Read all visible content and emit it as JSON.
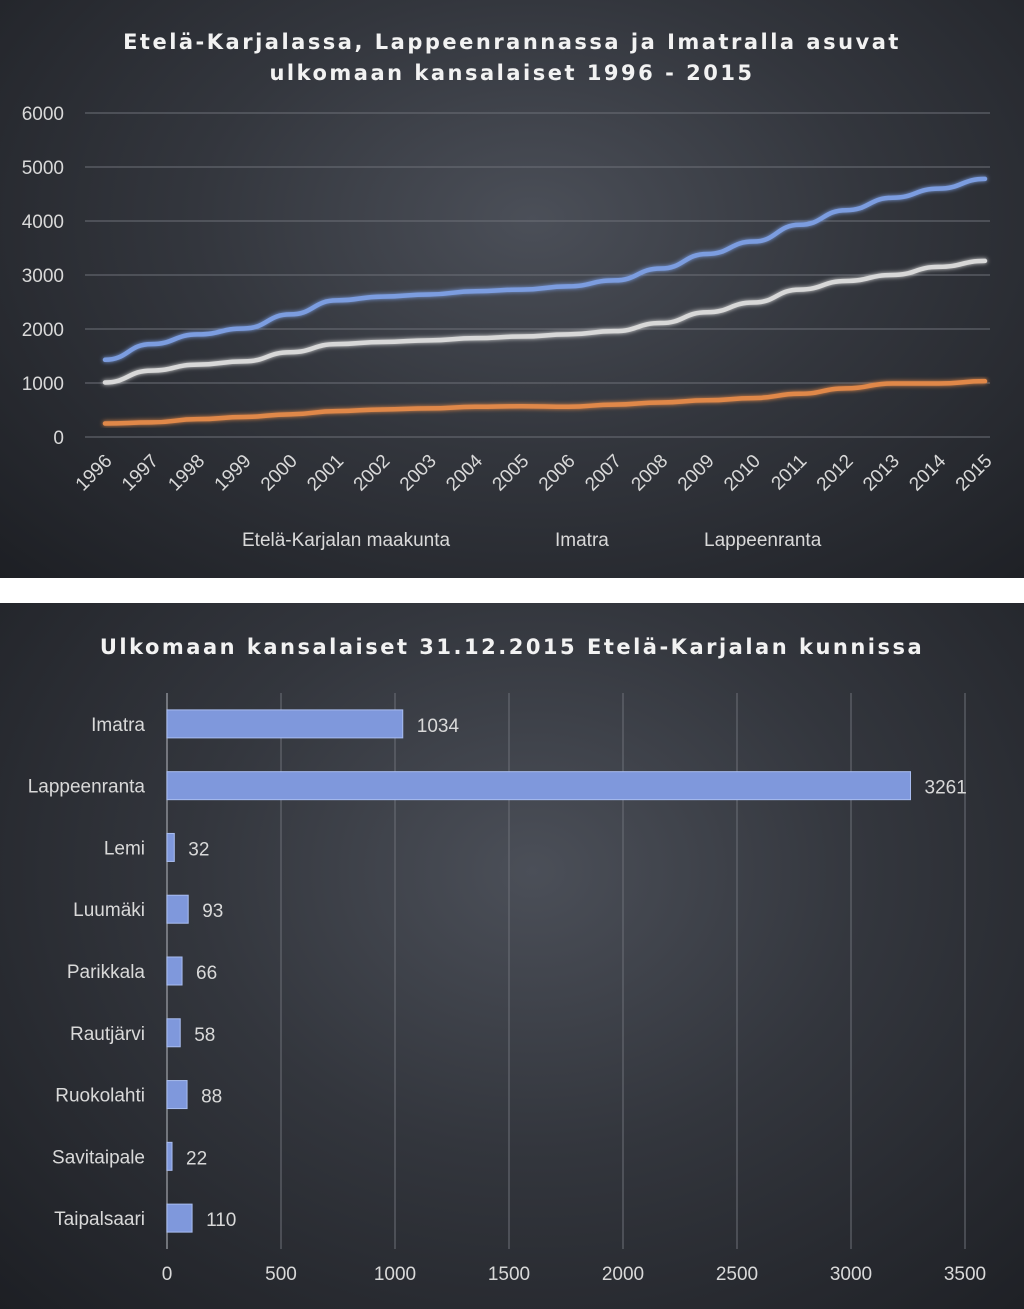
{
  "chart_data": [
    {
      "type": "line",
      "title_lines": [
        "Etelä-Karjalassa, Lappeenrannassa ja Imatralla asuvat",
        "ulkomaan kansalaiset 1996 - 2015"
      ],
      "x": [
        "1996",
        "1997",
        "1998",
        "1999",
        "2000",
        "2001",
        "2002",
        "2003",
        "2004",
        "2005",
        "2006",
        "2007",
        "2008",
        "2009",
        "2010",
        "2011",
        "2012",
        "2013",
        "2014",
        "2015"
      ],
      "ylim": [
        0,
        6000
      ],
      "yticks": [
        "0",
        "1000",
        "2000",
        "3000",
        "4000",
        "5000",
        "6000"
      ],
      "grid": true,
      "legend_position": "bottom",
      "series": [
        {
          "name": "Etelä-Karjalan maakunta",
          "color": "#7b9de0",
          "values": [
            1430,
            1720,
            1900,
            2010,
            2270,
            2530,
            2600,
            2640,
            2700,
            2730,
            2790,
            2900,
            3120,
            3390,
            3620,
            3930,
            4200,
            4430,
            4600,
            4780
          ]
        },
        {
          "name": "Imatra",
          "color": "#e0884a",
          "values": [
            250,
            270,
            330,
            370,
            420,
            480,
            510,
            530,
            560,
            570,
            560,
            600,
            640,
            680,
            720,
            800,
            900,
            990,
            990,
            1034
          ]
        },
        {
          "name": "Lappeenranta",
          "color": "#d8d8d8",
          "values": [
            1010,
            1230,
            1340,
            1400,
            1570,
            1720,
            1760,
            1790,
            1830,
            1860,
            1900,
            1960,
            2110,
            2310,
            2490,
            2730,
            2890,
            3000,
            3150,
            3261
          ]
        }
      ]
    },
    {
      "type": "bar",
      "orientation": "horizontal",
      "title": "Ulkomaan kansalaiset 31.12.2015 Etelä-Karjalan kunnissa",
      "categories": [
        "Imatra",
        "Lappeenranta",
        "Lemi",
        "Luumäki",
        "Parikkala",
        "Rautjärvi",
        "Ruokolahti",
        "Savitaipale",
        "Taipalsaari"
      ],
      "values": [
        1034,
        3261,
        32,
        93,
        66,
        58,
        88,
        22,
        110
      ],
      "value_labels": [
        "1034",
        "3261",
        "32",
        "93",
        "66",
        "58",
        "88",
        "22",
        "110"
      ],
      "xlim": [
        0,
        3500
      ],
      "xticks": [
        "0",
        "500",
        "1000",
        "1500",
        "2000",
        "2500",
        "3000",
        "3500"
      ],
      "grid": true,
      "bar_color": "#7f98dc"
    }
  ]
}
